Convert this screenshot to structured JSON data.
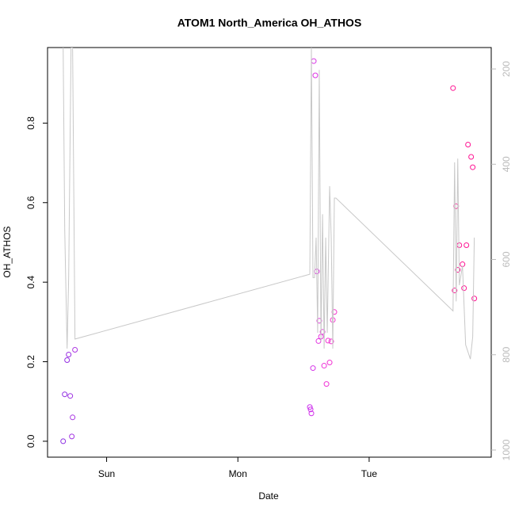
{
  "chart_data": {
    "type": "scatter",
    "title": "ATOM1 North_America OH_ATHOS",
    "x_label": "Date",
    "y_label": "OH_ATHOS",
    "xlim": [
      0.55,
      3.93
    ],
    "xticks": [
      {
        "value": 1,
        "label": "Sun"
      },
      {
        "value": 2,
        "label": "Mon"
      },
      {
        "value": 3,
        "label": "Tue"
      }
    ],
    "ylim": [
      -0.04,
      0.99
    ],
    "yticks": [
      {
        "value": 0,
        "label": "0.0"
      },
      0.2,
      0.4,
      0.6,
      0.8
    ],
    "y2lim": [
      1015,
      155
    ],
    "y2ticks": [
      200,
      400,
      600,
      800,
      1000
    ],
    "series": [
      {
        "x": [
          0.669,
          0.681,
          0.699,
          0.711,
          0.723,
          0.735,
          0.741,
          0.759,
          2.548,
          2.554,
          2.56,
          2.572,
          2.578,
          2.59,
          2.602,
          2.614,
          2.62,
          2.633,
          2.645,
          2.657,
          2.675,
          2.687,
          2.699,
          2.711,
          2.723,
          2.735,
          3.639,
          3.651,
          3.663,
          3.675,
          3.687,
          3.711,
          3.723,
          3.741,
          3.753,
          3.777,
          3.789,
          3.801
        ],
        "values": [
          0.0,
          0.118,
          0.204,
          0.218,
          0.114,
          0.012,
          0.06,
          0.23,
          0.086,
          0.08,
          0.07,
          0.184,
          0.956,
          0.92,
          0.427,
          0.252,
          0.303,
          0.263,
          0.275,
          0.19,
          0.144,
          0.253,
          0.198,
          0.251,
          0.305,
          0.325,
          0.888,
          0.379,
          0.591,
          0.431,
          0.493,
          0.445,
          0.385,
          0.493,
          0.746,
          0.715,
          0.689,
          0.359
        ],
        "colors": [
          "#8a2be2",
          "#8f2de2",
          "#942fe2",
          "#9930e2",
          "#9e32e2",
          "#a334e2",
          "#a836e2",
          "#ad38e2",
          "#cc33ee",
          "#cf33ec",
          "#d233ea",
          "#d533e8",
          "#d833e6",
          "#db33e4",
          "#de33e2",
          "#e133e0",
          "#e433de",
          "#e733dc",
          "#ea33da",
          "#ed33d8",
          "#f033d6",
          "#f133d4",
          "#f233d2",
          "#f333d0",
          "#f433ce",
          "#f533cc",
          "#ff1493",
          "#ff1493",
          "#ff1493",
          "#ff1493",
          "#ff1493",
          "#ff1493",
          "#ff1493",
          "#ff1493",
          "#ff1493",
          "#ff1493",
          "#ff1493",
          "#ff1493"
        ]
      },
      {
        "axis": "y2",
        "color": "#c8c8c8",
        "x": [
          0.669,
          0.681,
          0.699,
          0.711,
          0.729,
          0.741,
          0.759,
          2.548,
          2.56,
          2.572,
          2.584,
          2.596,
          2.608,
          2.62,
          2.633,
          2.645,
          2.657,
          2.669,
          2.681,
          2.699,
          2.711,
          2.723,
          2.735,
          2.747,
          3.639,
          3.651,
          3.663,
          3.675,
          3.687,
          3.711,
          3.735,
          3.771,
          3.789,
          3.801
        ],
        "values": [
          155,
          538,
          787,
          638,
          155,
          155,
          767,
          631,
          155,
          638,
          638,
          554,
          754,
          202,
          771,
          505,
          787,
          554,
          754,
          446,
          554,
          787,
          471,
          471,
          708,
          396,
          688,
          388,
          654,
          613,
          779,
          809,
          762,
          554
        ]
      }
    ]
  }
}
